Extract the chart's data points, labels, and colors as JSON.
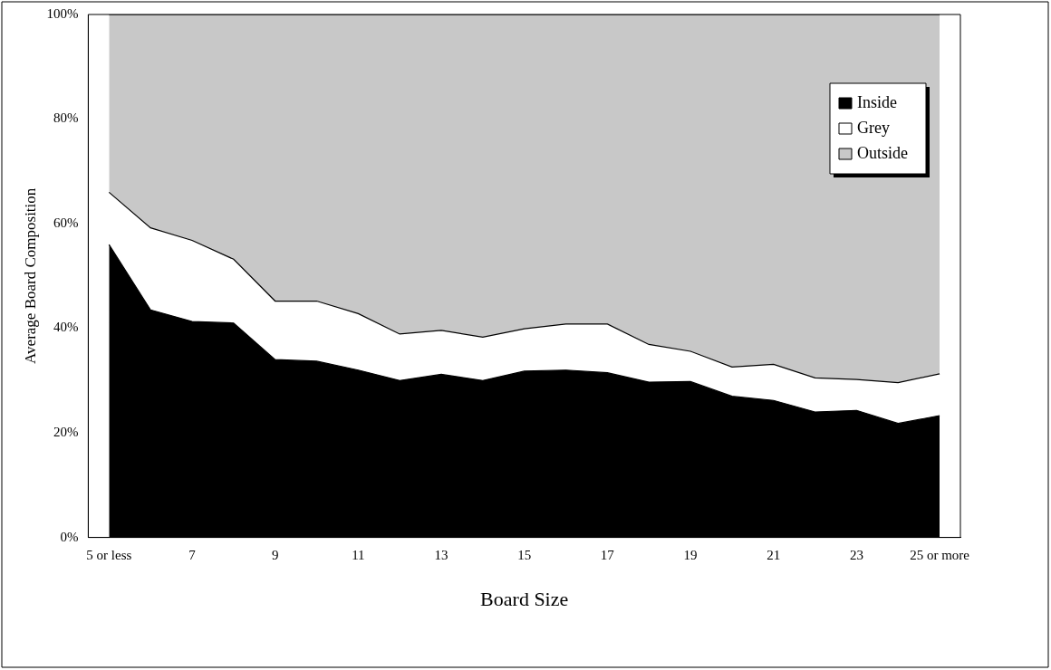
{
  "chart_data": {
    "type": "area",
    "stacked": true,
    "xlabel": "Board Size",
    "ylabel": "Average Board Composition",
    "categories": [
      "5 or less",
      null,
      "7",
      null,
      "9",
      null,
      "11",
      null,
      "13",
      null,
      "15",
      null,
      "17",
      null,
      "19",
      null,
      "21",
      null,
      "23",
      null,
      "25 or more"
    ],
    "series": [
      {
        "name": "Inside",
        "color": "#000000",
        "values": [
          56,
          43.5,
          41.3,
          41,
          34,
          33.7,
          32,
          30,
          31.2,
          30,
          31.8,
          32,
          31.5,
          29.7,
          29.8,
          27,
          26.2,
          24,
          24.3,
          21.8,
          23.3
        ]
      },
      {
        "name": "Grey",
        "color": "#ffffff",
        "values": [
          10,
          15.7,
          15.5,
          12.2,
          11.2,
          11.5,
          10.8,
          8.9,
          8.4,
          8.3,
          8.1,
          8.8,
          9.3,
          7.2,
          5.8,
          5.6,
          6.9,
          6.5,
          5.9,
          7.8,
          8
        ]
      },
      {
        "name": "Outside",
        "color": "#c8c8c8",
        "values": [
          34,
          40.8,
          43.2,
          46.8,
          54.8,
          54.8,
          57.2,
          61.1,
          60.4,
          61.7,
          60.1,
          59.2,
          59.2,
          63.1,
          64.4,
          67.4,
          66.9,
          69.5,
          69.8,
          70.4,
          68.7
        ]
      }
    ],
    "ylim": [
      0,
      100
    ],
    "yticks": [
      {
        "value": 0,
        "label": "0%"
      },
      {
        "value": 20,
        "label": "20%"
      },
      {
        "value": 40,
        "label": "40%"
      },
      {
        "value": 60,
        "label": "60%"
      },
      {
        "value": 80,
        "label": "80%"
      },
      {
        "value": 100,
        "label": "100%"
      }
    ],
    "grid": false,
    "legend": "top right"
  }
}
